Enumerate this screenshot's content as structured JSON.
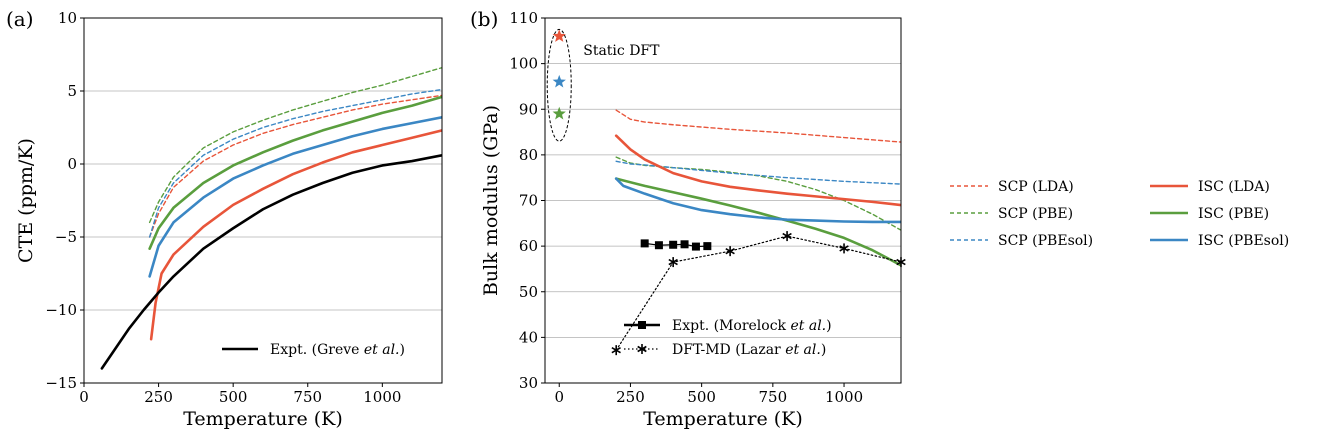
{
  "colors": {
    "LDA": "#e8553a",
    "PBE": "#5a9e3e",
    "PBEsol": "#3b87c4",
    "expt": "#000000"
  },
  "chart_data": [
    {
      "panel": "(a)",
      "type": "line",
      "xlabel": "Temperature (K)",
      "ylabel": "CTE (ppm/K)",
      "xlim": [
        0,
        1200
      ],
      "ylim": [
        -15,
        10
      ],
      "xticks": [
        0,
        250,
        500,
        750,
        1000
      ],
      "yticks": [
        -15,
        -10,
        -5,
        0,
        5,
        10
      ],
      "ytick_labels": [
        "−15",
        "−10",
        "−5",
        "0",
        "5",
        "10"
      ],
      "grid": "horizontal",
      "legend_position": "lower-right",
      "series": [
        {
          "name": "SCP (LDA)",
          "style": "dashed",
          "color_key": "LDA",
          "x": [
            220,
            250,
            300,
            400,
            500,
            600,
            700,
            800,
            900,
            1000,
            1100,
            1200
          ],
          "y": [
            -5.0,
            -3.4,
            -1.6,
            0.2,
            1.3,
            2.1,
            2.7,
            3.2,
            3.7,
            4.1,
            4.4,
            4.7
          ]
        },
        {
          "name": "SCP (PBE)",
          "style": "dashed",
          "color_key": "PBE",
          "x": [
            220,
            250,
            300,
            400,
            500,
            600,
            700,
            800,
            900,
            1000,
            1100,
            1200
          ],
          "y": [
            -4.0,
            -2.6,
            -0.9,
            1.1,
            2.2,
            3.0,
            3.7,
            4.3,
            4.9,
            5.4,
            6.0,
            6.6
          ]
        },
        {
          "name": "SCP (PBEsol)",
          "style": "dashed",
          "color_key": "PBEsol",
          "x": [
            220,
            250,
            300,
            400,
            500,
            600,
            700,
            800,
            900,
            1000,
            1100,
            1200
          ],
          "y": [
            -5.0,
            -3.0,
            -1.3,
            0.6,
            1.7,
            2.5,
            3.1,
            3.6,
            4.0,
            4.4,
            4.8,
            5.1
          ]
        },
        {
          "name": "ISC (LDA)",
          "style": "solid",
          "color_key": "LDA",
          "x": [
            225,
            240,
            260,
            300,
            400,
            500,
            600,
            700,
            800,
            900,
            1000,
            1100,
            1200
          ],
          "y": [
            -12.0,
            -9.5,
            -7.5,
            -6.2,
            -4.3,
            -2.8,
            -1.7,
            -0.7,
            0.1,
            0.8,
            1.3,
            1.8,
            2.3
          ]
        },
        {
          "name": "ISC (PBE)",
          "style": "solid",
          "color_key": "PBE",
          "x": [
            220,
            250,
            300,
            400,
            500,
            600,
            700,
            800,
            900,
            1000,
            1100,
            1200
          ],
          "y": [
            -5.8,
            -4.4,
            -3.0,
            -1.3,
            -0.1,
            0.8,
            1.6,
            2.3,
            2.9,
            3.5,
            4.0,
            4.6
          ]
        },
        {
          "name": "ISC (PBEsol)",
          "style": "solid",
          "color_key": "PBEsol",
          "x": [
            220,
            250,
            300,
            400,
            500,
            600,
            700,
            800,
            900,
            1000,
            1100,
            1200
          ],
          "y": [
            -7.7,
            -5.6,
            -4.0,
            -2.3,
            -1.0,
            -0.1,
            0.7,
            1.3,
            1.9,
            2.4,
            2.8,
            3.2
          ]
        },
        {
          "name": "Expt. (Greve et al.)",
          "legend_text": "Expt. (Greve ",
          "legend_italic": "et al.",
          "legend_suffix": ")",
          "style": "solid",
          "color_key": "expt",
          "x": [
            60,
            100,
            150,
            200,
            250,
            300,
            400,
            500,
            600,
            700,
            800,
            900,
            1000,
            1100,
            1200
          ],
          "y": [
            -14.0,
            -12.8,
            -11.3,
            -10.0,
            -8.8,
            -7.7,
            -5.8,
            -4.4,
            -3.1,
            -2.1,
            -1.3,
            -0.6,
            -0.1,
            0.2,
            0.6
          ]
        }
      ]
    },
    {
      "panel": "(b)",
      "type": "line",
      "xlabel": "Temperature (K)",
      "ylabel": "Bulk modulus (GPa)",
      "xlim": [
        -50,
        1200
      ],
      "ylim": [
        30,
        110
      ],
      "xticks": [
        0,
        250,
        500,
        750,
        1000
      ],
      "yticks": [
        30,
        40,
        50,
        60,
        70,
        80,
        90,
        100,
        110
      ],
      "grid": "horizontal",
      "legend_position": "lower-right",
      "annotation": "Static DFT",
      "static_points": [
        {
          "color_key": "LDA",
          "x": 0,
          "y": 106
        },
        {
          "color_key": "PBEsol",
          "x": 0,
          "y": 96
        },
        {
          "color_key": "PBE",
          "x": 0,
          "y": 89
        }
      ],
      "series": [
        {
          "name": "SCP (LDA)",
          "style": "dashed",
          "color_key": "LDA",
          "x": [
            200,
            250,
            300,
            400,
            500,
            600,
            700,
            800,
            900,
            1000,
            1100,
            1200
          ],
          "y": [
            89.8,
            87.8,
            87.2,
            86.6,
            86.1,
            85.6,
            85.2,
            84.8,
            84.3,
            83.8,
            83.3,
            82.8
          ]
        },
        {
          "name": "SCP (PBE)",
          "style": "dashed",
          "color_key": "PBE",
          "x": [
            200,
            250,
            300,
            400,
            500,
            600,
            700,
            800,
            900,
            1000,
            1100,
            1200
          ],
          "y": [
            79.5,
            78.2,
            77.7,
            77.2,
            76.8,
            76.2,
            75.4,
            74.2,
            72.4,
            70.0,
            67.0,
            63.5
          ]
        },
        {
          "name": "SCP (PBEsol)",
          "style": "dashed",
          "color_key": "PBEsol",
          "x": [
            200,
            250,
            300,
            400,
            500,
            600,
            700,
            800,
            900,
            1000,
            1100,
            1200
          ],
          "y": [
            78.6,
            78.0,
            77.8,
            77.2,
            76.6,
            76.0,
            75.5,
            75.0,
            74.6,
            74.2,
            73.9,
            73.6
          ]
        },
        {
          "name": "ISC (LDA)",
          "style": "solid",
          "color_key": "LDA",
          "x": [
            200,
            250,
            300,
            400,
            500,
            600,
            700,
            800,
            900,
            1000,
            1100,
            1200
          ],
          "y": [
            84.2,
            81.2,
            79.0,
            76.0,
            74.2,
            73.0,
            72.2,
            71.5,
            70.9,
            70.3,
            69.7,
            69.0
          ]
        },
        {
          "name": "ISC (PBE)",
          "style": "solid",
          "color_key": "PBE",
          "x": [
            200,
            300,
            400,
            500,
            600,
            700,
            800,
            900,
            1000,
            1100,
            1200
          ],
          "y": [
            74.8,
            73.2,
            71.8,
            70.4,
            68.9,
            67.3,
            65.6,
            63.8,
            61.8,
            59.1,
            55.8
          ]
        },
        {
          "name": "ISC (PBEsol)",
          "style": "solid",
          "color_key": "PBEsol",
          "x": [
            200,
            225,
            300,
            400,
            500,
            600,
            700,
            800,
            900,
            1000,
            1100,
            1200
          ],
          "y": [
            74.8,
            73.2,
            71.5,
            69.4,
            67.9,
            67.0,
            66.3,
            65.8,
            65.6,
            65.4,
            65.3,
            65.3
          ]
        },
        {
          "name": "Expt. (Morelock et al.)",
          "legend_text": "Expt. (Morelock ",
          "legend_italic": "et al.",
          "legend_suffix": ")",
          "style": "solid",
          "marker": "square",
          "color_key": "expt",
          "x": [
            300,
            350,
            400,
            440,
            480,
            520
          ],
          "y": [
            60.6,
            60.2,
            60.3,
            60.4,
            59.9,
            60.0
          ]
        },
        {
          "name": "DFT-MD (Lazar et al.)",
          "legend_text": "DFT-MD (Lazar ",
          "legend_italic": "et al.",
          "legend_suffix": ")",
          "style": "dotted",
          "marker": "asterisk",
          "color_key": "expt",
          "x": [
            200,
            400,
            600,
            800,
            1000,
            1200
          ],
          "y": [
            37.2,
            56.5,
            58.9,
            62.2,
            59.5,
            56.5
          ]
        }
      ]
    }
  ],
  "shared_legend": {
    "columns": [
      [
        "SCP (LDA)",
        "SCP (PBE)",
        "SCP (PBEsol)"
      ],
      [
        "ISC (LDA)",
        "ISC (PBE)",
        "ISC (PBEsol)"
      ]
    ]
  }
}
